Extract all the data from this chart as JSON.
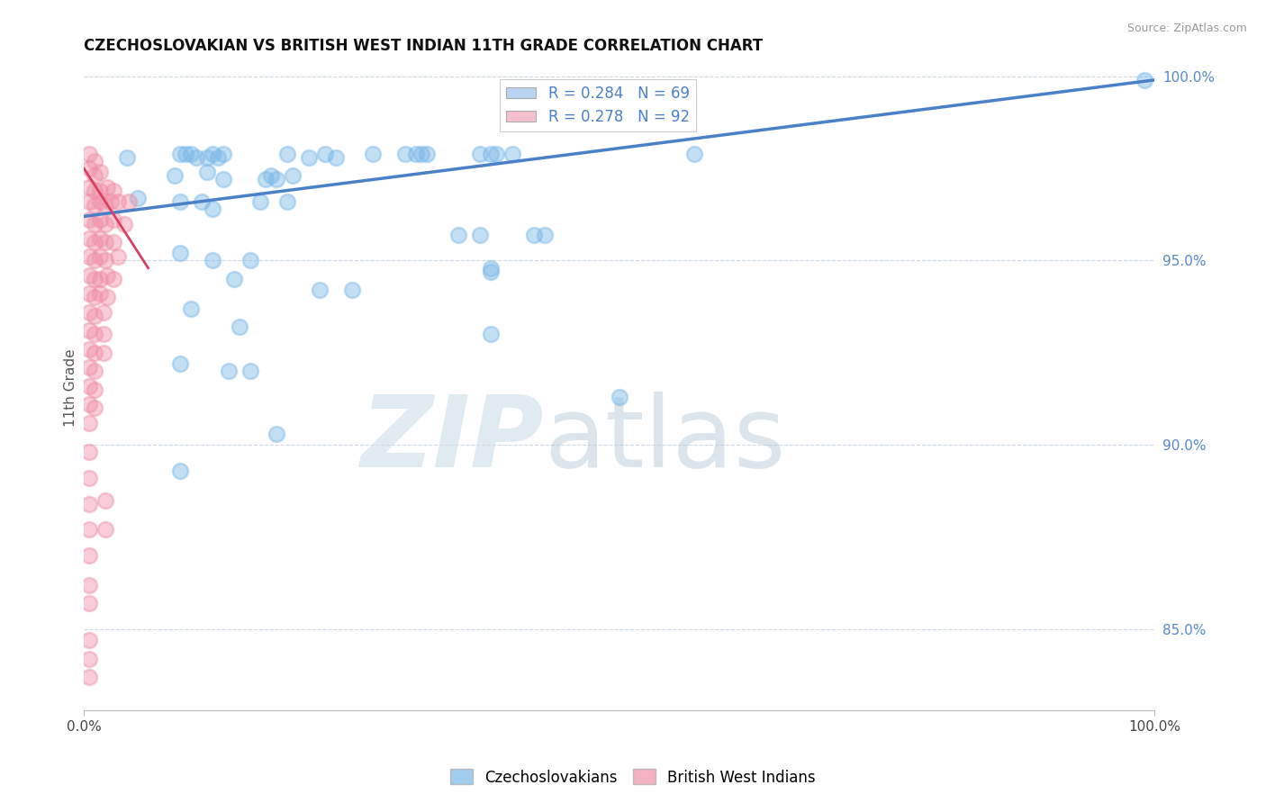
{
  "title": "CZECHOSLOVAKIAN VS BRITISH WEST INDIAN 11TH GRADE CORRELATION CHART",
  "source": "Source: ZipAtlas.com",
  "ylabel": "11th Grade",
  "xlim": [
    0.0,
    1.0
  ],
  "ylim": [
    0.828,
    1.003
  ],
  "ytick_vals": [
    0.85,
    0.9,
    0.95,
    1.0
  ],
  "ytick_labels": [
    "85.0%",
    "90.0%",
    "95.0%",
    "100.0%"
  ],
  "xtick_vals": [
    0.0,
    1.0
  ],
  "xtick_labels": [
    "0.0%",
    "100.0%"
  ],
  "legend_entries": [
    {
      "label": "R = 0.284   N = 69",
      "color": "#b8d4f0"
    },
    {
      "label": "R = 0.278   N = 92",
      "color": "#f5c0ce"
    }
  ],
  "legend_labels_bottom": [
    "Czechoslovakians",
    "British West Indians"
  ],
  "blue_color": "#7ab8e8",
  "pink_color": "#f090a8",
  "trend_blue_color": "#4a80c8",
  "trend_pink_color": "#d84060",
  "grid_color": "#c0d0e0",
  "bg_color": "#ffffff",
  "blue_scatter": [
    [
      0.04,
      0.978
    ],
    [
      0.09,
      0.979
    ],
    [
      0.095,
      0.979
    ],
    [
      0.1,
      0.979
    ],
    [
      0.105,
      0.978
    ],
    [
      0.115,
      0.978
    ],
    [
      0.12,
      0.979
    ],
    [
      0.125,
      0.978
    ],
    [
      0.13,
      0.979
    ],
    [
      0.19,
      0.979
    ],
    [
      0.21,
      0.978
    ],
    [
      0.225,
      0.979
    ],
    [
      0.235,
      0.978
    ],
    [
      0.27,
      0.979
    ],
    [
      0.3,
      0.979
    ],
    [
      0.31,
      0.979
    ],
    [
      0.315,
      0.979
    ],
    [
      0.32,
      0.979
    ],
    [
      0.37,
      0.979
    ],
    [
      0.38,
      0.979
    ],
    [
      0.385,
      0.979
    ],
    [
      0.4,
      0.979
    ],
    [
      0.57,
      0.979
    ],
    [
      0.085,
      0.973
    ],
    [
      0.115,
      0.974
    ],
    [
      0.13,
      0.972
    ],
    [
      0.17,
      0.972
    ],
    [
      0.175,
      0.973
    ],
    [
      0.18,
      0.972
    ],
    [
      0.195,
      0.973
    ],
    [
      0.05,
      0.967
    ],
    [
      0.09,
      0.966
    ],
    [
      0.11,
      0.966
    ],
    [
      0.12,
      0.964
    ],
    [
      0.165,
      0.966
    ],
    [
      0.19,
      0.966
    ],
    [
      0.35,
      0.957
    ],
    [
      0.37,
      0.957
    ],
    [
      0.42,
      0.957
    ],
    [
      0.43,
      0.957
    ],
    [
      0.09,
      0.952
    ],
    [
      0.12,
      0.95
    ],
    [
      0.155,
      0.95
    ],
    [
      0.38,
      0.948
    ],
    [
      0.38,
      0.947
    ],
    [
      0.14,
      0.945
    ],
    [
      0.22,
      0.942
    ],
    [
      0.25,
      0.942
    ],
    [
      0.1,
      0.937
    ],
    [
      0.145,
      0.932
    ],
    [
      0.38,
      0.93
    ],
    [
      0.09,
      0.922
    ],
    [
      0.135,
      0.92
    ],
    [
      0.155,
      0.92
    ],
    [
      0.5,
      0.913
    ],
    [
      0.18,
      0.903
    ],
    [
      0.09,
      0.893
    ],
    [
      0.99,
      0.999
    ]
  ],
  "pink_scatter": [
    [
      0.005,
      0.979
    ],
    [
      0.01,
      0.977
    ],
    [
      0.005,
      0.975
    ],
    [
      0.01,
      0.973
    ],
    [
      0.015,
      0.974
    ],
    [
      0.005,
      0.97
    ],
    [
      0.01,
      0.969
    ],
    [
      0.015,
      0.969
    ],
    [
      0.022,
      0.97
    ],
    [
      0.028,
      0.969
    ],
    [
      0.005,
      0.966
    ],
    [
      0.01,
      0.965
    ],
    [
      0.015,
      0.966
    ],
    [
      0.02,
      0.965
    ],
    [
      0.025,
      0.966
    ],
    [
      0.032,
      0.966
    ],
    [
      0.042,
      0.966
    ],
    [
      0.005,
      0.961
    ],
    [
      0.01,
      0.96
    ],
    [
      0.015,
      0.961
    ],
    [
      0.02,
      0.96
    ],
    [
      0.028,
      0.961
    ],
    [
      0.038,
      0.96
    ],
    [
      0.005,
      0.956
    ],
    [
      0.01,
      0.955
    ],
    [
      0.015,
      0.956
    ],
    [
      0.02,
      0.955
    ],
    [
      0.028,
      0.955
    ],
    [
      0.005,
      0.951
    ],
    [
      0.01,
      0.95
    ],
    [
      0.015,
      0.951
    ],
    [
      0.02,
      0.95
    ],
    [
      0.032,
      0.951
    ],
    [
      0.005,
      0.946
    ],
    [
      0.01,
      0.945
    ],
    [
      0.015,
      0.945
    ],
    [
      0.022,
      0.946
    ],
    [
      0.028,
      0.945
    ],
    [
      0.005,
      0.941
    ],
    [
      0.01,
      0.94
    ],
    [
      0.015,
      0.941
    ],
    [
      0.022,
      0.94
    ],
    [
      0.005,
      0.936
    ],
    [
      0.01,
      0.935
    ],
    [
      0.018,
      0.936
    ],
    [
      0.005,
      0.931
    ],
    [
      0.01,
      0.93
    ],
    [
      0.018,
      0.93
    ],
    [
      0.005,
      0.926
    ],
    [
      0.01,
      0.925
    ],
    [
      0.018,
      0.925
    ],
    [
      0.005,
      0.921
    ],
    [
      0.01,
      0.92
    ],
    [
      0.005,
      0.916
    ],
    [
      0.01,
      0.915
    ],
    [
      0.005,
      0.911
    ],
    [
      0.01,
      0.91
    ],
    [
      0.005,
      0.906
    ],
    [
      0.005,
      0.898
    ],
    [
      0.005,
      0.891
    ],
    [
      0.005,
      0.884
    ],
    [
      0.02,
      0.885
    ],
    [
      0.005,
      0.877
    ],
    [
      0.02,
      0.877
    ],
    [
      0.005,
      0.87
    ],
    [
      0.005,
      0.862
    ],
    [
      0.005,
      0.857
    ],
    [
      0.005,
      0.847
    ],
    [
      0.005,
      0.842
    ],
    [
      0.005,
      0.837
    ]
  ],
  "blue_trend_x": [
    0.0,
    1.0
  ],
  "blue_trend_y": [
    0.962,
    0.999
  ],
  "pink_trend_x": [
    0.0,
    0.06
  ],
  "pink_trend_y": [
    0.975,
    0.948
  ],
  "watermark_zip_color": "#ccdde8",
  "watermark_atlas_color": "#b8ccd8"
}
